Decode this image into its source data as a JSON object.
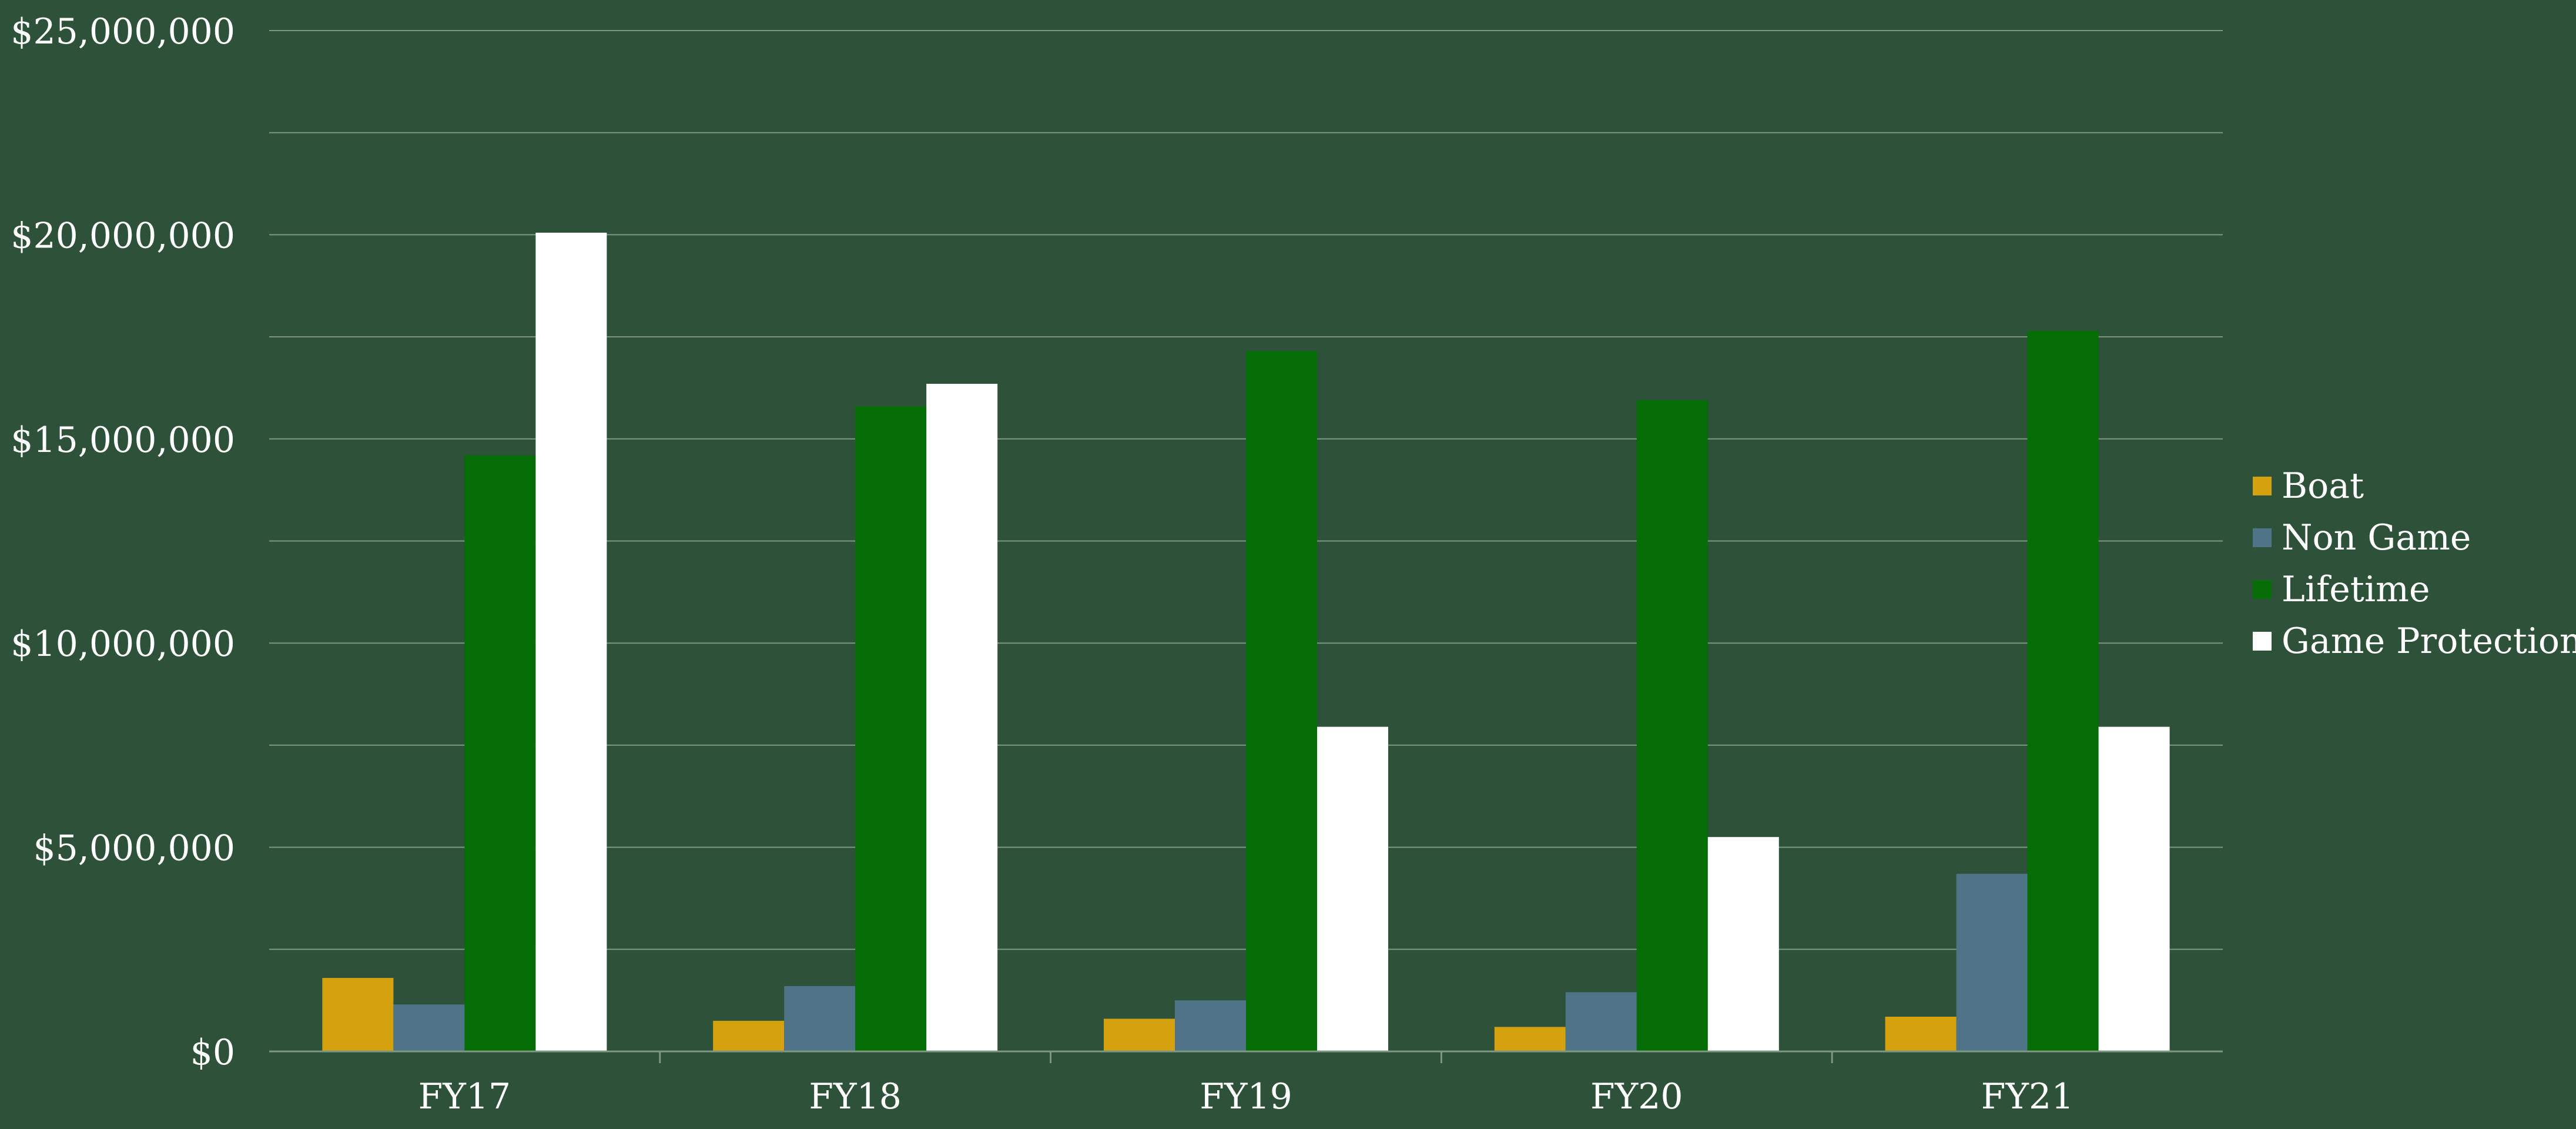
{
  "chart_data": {
    "type": "bar",
    "title": "",
    "xlabel": "",
    "ylabel": "",
    "categories": [
      "FY17",
      "FY18",
      "FY19",
      "FY20",
      "FY21"
    ],
    "series": [
      {
        "name": "Boat",
        "color": "#d4a10f",
        "values": [
          1800000,
          750000,
          800000,
          600000,
          850000
        ]
      },
      {
        "name": "Non Game",
        "color": "#4f7488",
        "values": [
          1150000,
          1600000,
          1250000,
          1450000,
          4350000
        ]
      },
      {
        "name": "Lifetime",
        "color": "#046d05",
        "values": [
          14600000,
          15800000,
          17150000,
          15950000,
          17650000
        ]
      },
      {
        "name": "Game Protection",
        "color": "#ffffff",
        "values": [
          20050000,
          16350000,
          7950000,
          5250000,
          7950000
        ]
      }
    ],
    "ylim": [
      0,
      25000000
    ],
    "y_ticks": [
      "$0",
      "$5,000,000",
      "$10,000,000",
      "$15,000,000",
      "$20,000,000",
      "$25,000,000"
    ],
    "y_tick_values": [
      0,
      5000000,
      10000000,
      15000000,
      20000000,
      25000000
    ],
    "grid": true,
    "legend_position": "right"
  },
  "colors": {
    "background": "#2d5139",
    "gridline": "#7e9884",
    "text": "#ffffff"
  }
}
